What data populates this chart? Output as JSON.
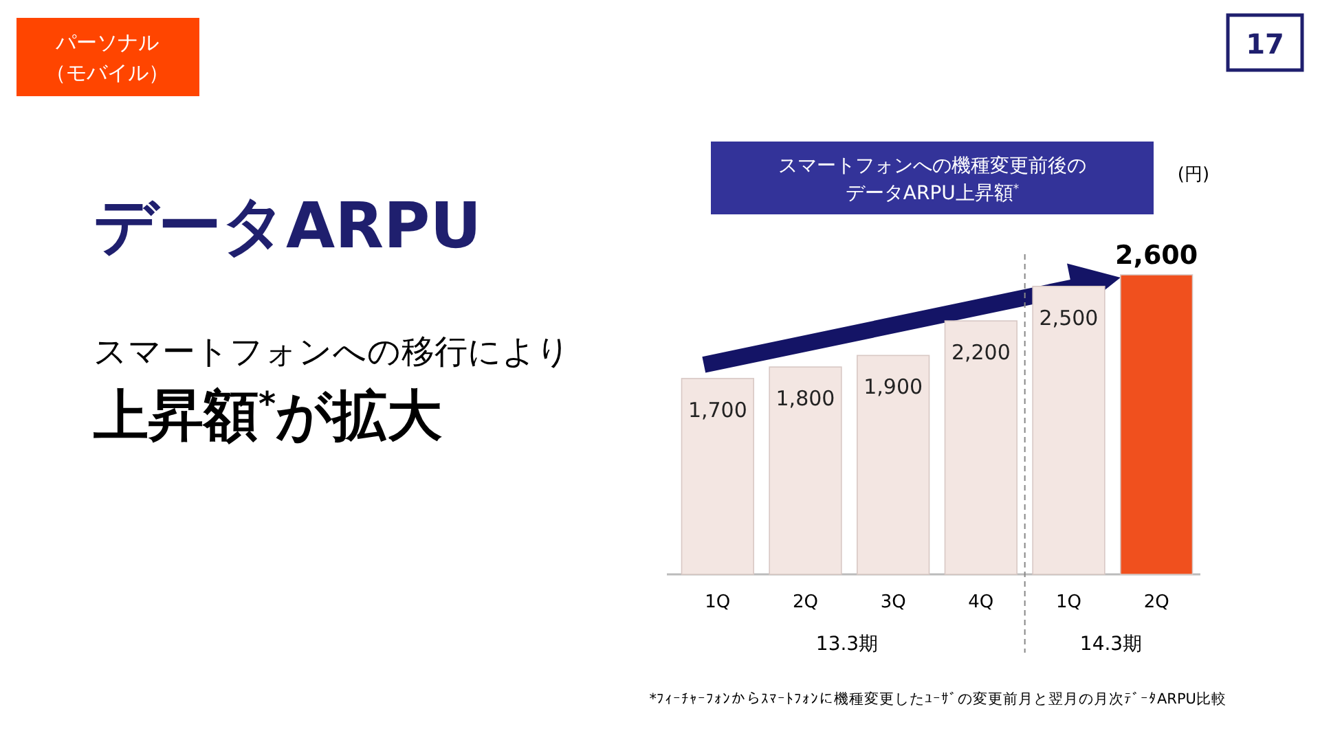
{
  "chart_data": {
    "type": "bar",
    "title": "スマートフォンへの機種変更前後のデータARPU上昇額$^{*}$",
    "ylabel": "(円)",
    "categories": [
      "1Q",
      "2Q",
      "3Q",
      "4Q",
      "1Q",
      "2Q"
    ],
    "values": [
      1700,
      1800,
      1900,
      2200,
      2500,
      2600
    ],
    "colors": [
      "#f3e6e2",
      "#f3e6e2",
      "#f3e6e2",
      "#f3e6e2",
      "#f3e6e2",
      "#f0501e"
    ],
    "value_labels": [
      "1,700",
      "1,800",
      "1,900",
      "2,200",
      "2,500",
      "2,600"
    ],
    "annotations": [
      "パーソナル（モバイル）",
      "17",
      "データARPU",
      "スマートフォンへの移行により",
      "上昇額$^{*}$が拡大",
      "13.3期",
      "14.3期",
      "*ﾌｨｰﾁｬｰﾌｫﾝからｽﾏｰﾄﾌｫﾝに機種変更したﾕｰｻﾞの変更前月と翌月の月次ﾃﾞｰﾀARPU比較"
    ]
  }
}
